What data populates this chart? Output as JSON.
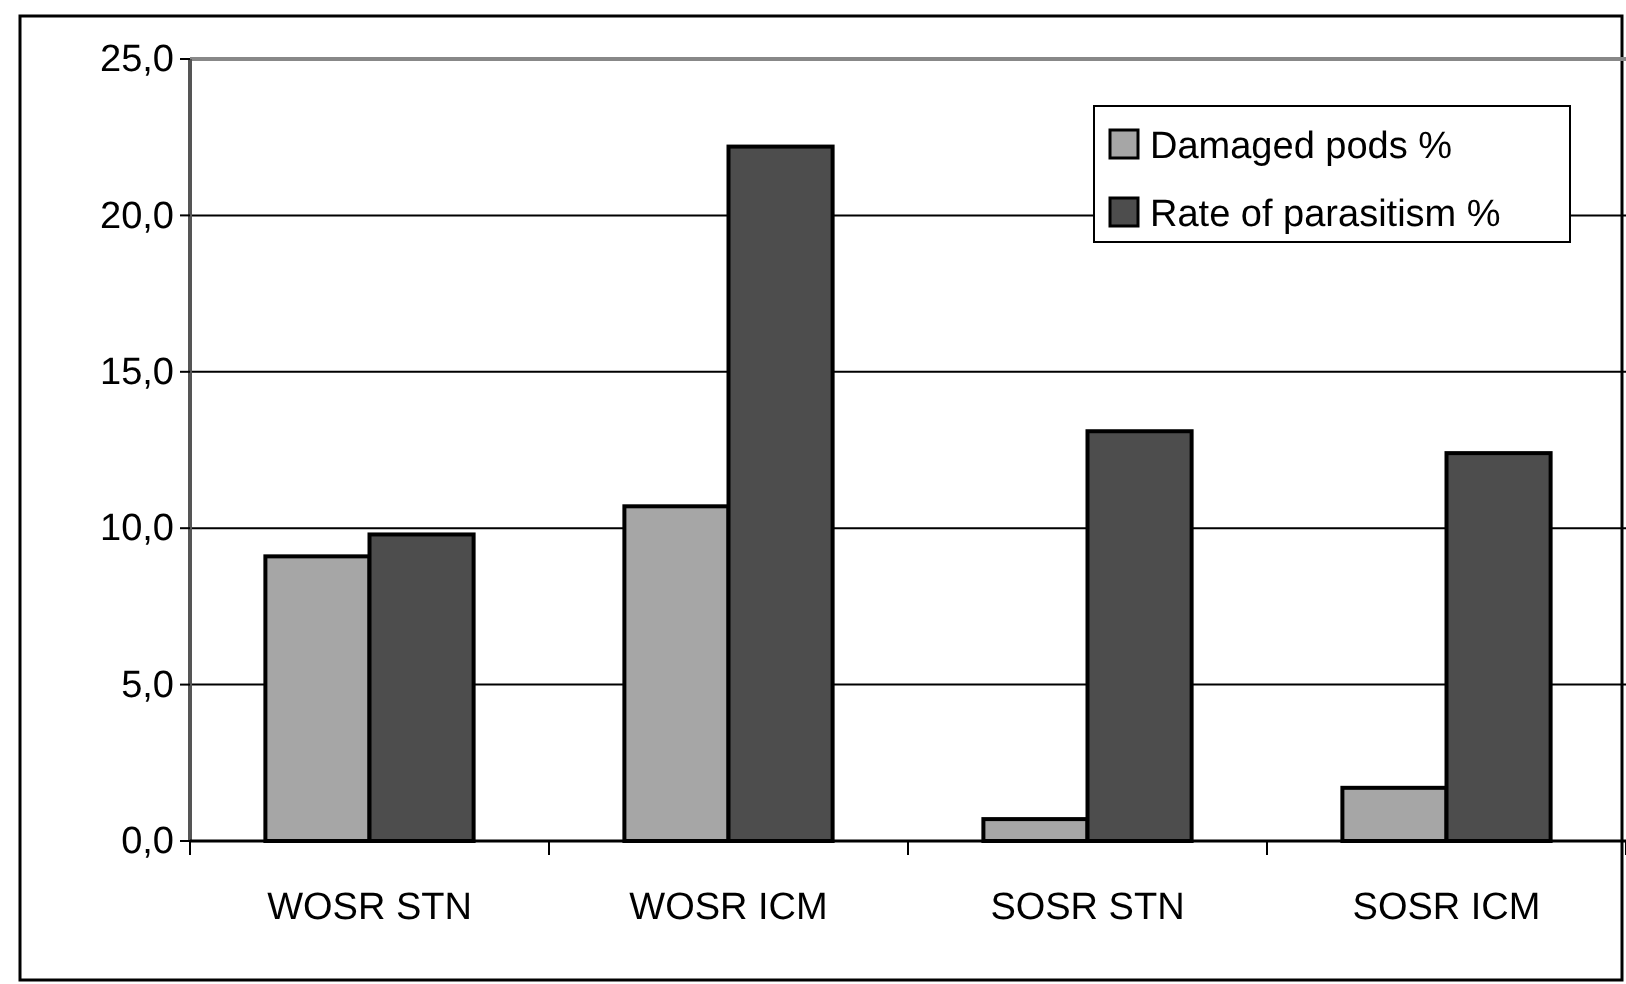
{
  "chart_data": {
    "type": "bar",
    "categories": [
      "WOSR STN",
      "WOSR ICM",
      "SOSR STN",
      "SOSR ICM"
    ],
    "series": [
      {
        "name": "Damaged pods %",
        "color": "#a6a6a6",
        "values": [
          9.1,
          10.7,
          0.7,
          1.7
        ]
      },
      {
        "name": "Rate of parasitism %",
        "color": "#4d4d4d",
        "values": [
          9.8,
          22.2,
          13.1,
          12.4
        ]
      }
    ],
    "ylim": [
      0,
      25
    ],
    "yticks": [
      {
        "value": 0,
        "label": "0,0"
      },
      {
        "value": 5,
        "label": "5,0"
      },
      {
        "value": 10,
        "label": "10,0"
      },
      {
        "value": 15,
        "label": "15,0"
      },
      {
        "value": 20,
        "label": "20,0"
      },
      {
        "value": 25,
        "label": "25,0"
      }
    ],
    "grid": "y",
    "legend": "top right"
  }
}
